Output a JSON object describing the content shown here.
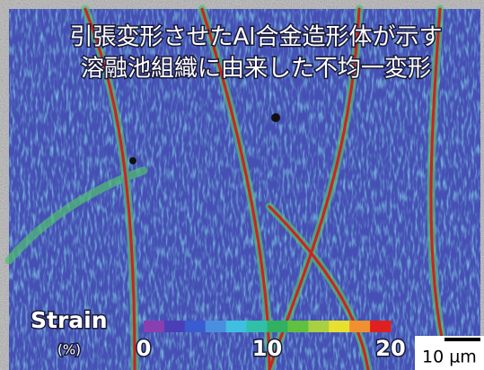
{
  "title_lines": [
    "引張変形させたAl合金造形体が示す",
    "溶融池組織に由来した不均一変形"
  ],
  "colorbar": {
    "label": "Strain",
    "unit": "(%)",
    "lim": [
      0,
      20
    ],
    "ticks": [
      0,
      10,
      20
    ],
    "colors": [
      "#8a3fb0",
      "#4b3fb8",
      "#3a5cd0",
      "#4a8ee0",
      "#3fc0e0",
      "#30c0a8",
      "#30b060",
      "#60c040",
      "#a8d040",
      "#e8e030",
      "#f09030",
      "#e02020"
    ]
  },
  "scale_bar": {
    "label": "10 µm"
  }
}
